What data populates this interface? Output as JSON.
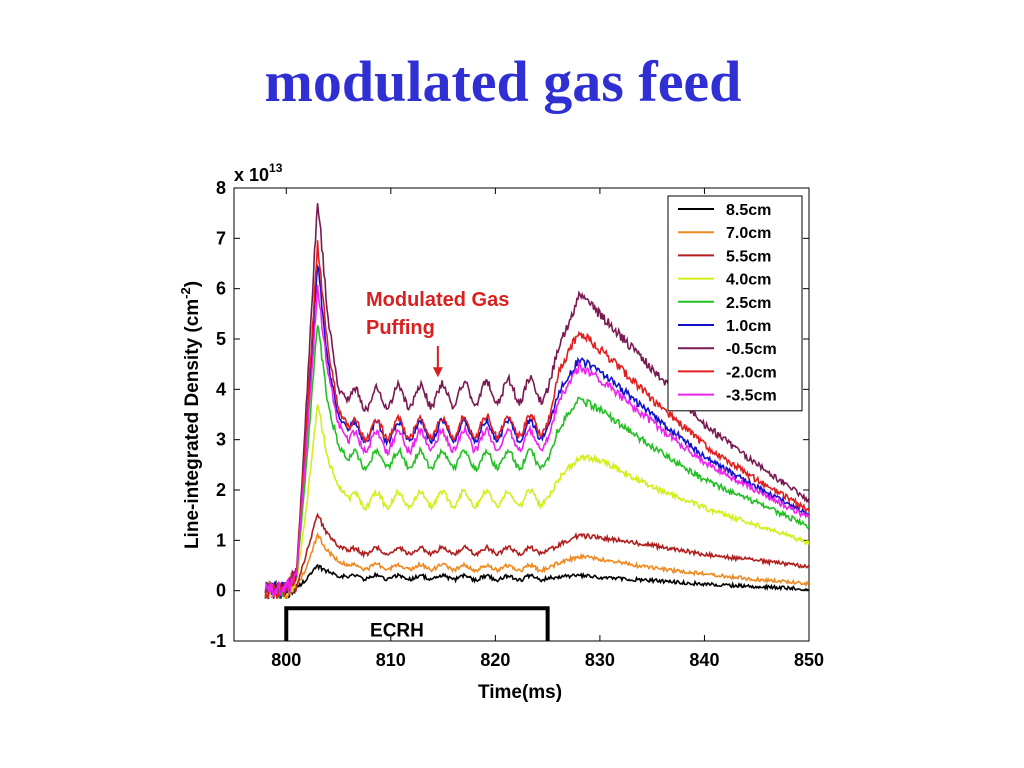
{
  "slide": {
    "title": "modulated gas feed"
  },
  "chart_data": {
    "type": "line",
    "xlabel": "Time(ms)",
    "ylabel": "Line-integrated Density (cm",
    "ylabel_sup": "-2",
    "ylabel_close": ")",
    "y_multiplier_base": "x 10",
    "y_multiplier_exp": "13",
    "xlim": [
      795,
      850
    ],
    "ylim": [
      -1,
      8
    ],
    "x_ticks": [
      800,
      810,
      820,
      830,
      840,
      850
    ],
    "y_ticks": [
      -1,
      0,
      1,
      2,
      3,
      4,
      5,
      6,
      7,
      8
    ],
    "legend_position": "top-right",
    "x_model": [
      798,
      800,
      801,
      802,
      803,
      804,
      805,
      806,
      825,
      826,
      828,
      830,
      835,
      840,
      845,
      850
    ],
    "series": [
      {
        "name": "8.5cm",
        "color": "#000000",
        "values": [
          0,
          0,
          0.05,
          0.25,
          0.48,
          0.38,
          0.3,
          0.27,
          0.25,
          0.28,
          0.3,
          0.26,
          0.2,
          0.13,
          0.08,
          0.03
        ],
        "mod_amp": 0.04
      },
      {
        "name": "7.0cm",
        "color": "#ee8a22",
        "values": [
          0,
          0,
          0.08,
          0.5,
          1.1,
          0.78,
          0.6,
          0.48,
          0.45,
          0.55,
          0.68,
          0.62,
          0.45,
          0.33,
          0.22,
          0.14
        ],
        "mod_amp": 0.05
      },
      {
        "name": "5.5cm",
        "color": "#b01e1e",
        "values": [
          0,
          0,
          0.1,
          0.8,
          1.5,
          1.1,
          0.9,
          0.78,
          0.8,
          0.9,
          1.1,
          1.05,
          0.9,
          0.72,
          0.6,
          0.47
        ],
        "mod_amp": 0.06
      },
      {
        "name": "4.0cm",
        "color": "#d4ee1c",
        "values": [
          0,
          0,
          0.2,
          1.8,
          3.7,
          2.6,
          2.1,
          1.8,
          1.85,
          2.2,
          2.65,
          2.6,
          2.05,
          1.65,
          1.3,
          0.95
        ],
        "mod_amp": 0.15
      },
      {
        "name": "2.5cm",
        "color": "#22c022",
        "values": [
          0,
          0,
          0.3,
          2.7,
          5.3,
          3.7,
          2.9,
          2.6,
          2.6,
          3.2,
          3.8,
          3.6,
          2.85,
          2.2,
          1.75,
          1.28
        ],
        "mod_amp": 0.17
      },
      {
        "name": "1.0cm",
        "color": "#1111cc",
        "values": [
          0,
          0,
          0.35,
          3.3,
          6.5,
          4.5,
          3.5,
          3.15,
          3.2,
          3.9,
          4.6,
          4.35,
          3.5,
          2.65,
          2.05,
          1.5
        ],
        "mod_amp": 0.2
      },
      {
        "name": "-0.5cm",
        "color": "#7a1a52",
        "values": [
          0,
          0,
          0.4,
          4.0,
          7.8,
          5.4,
          4.0,
          3.8,
          4.0,
          4.8,
          5.85,
          5.5,
          4.4,
          3.3,
          2.5,
          1.8
        ],
        "mod_amp": 0.22
      },
      {
        "name": "-2.0cm",
        "color": "#e02020",
        "values": [
          0,
          0,
          0.37,
          3.5,
          6.85,
          4.8,
          3.6,
          3.2,
          3.3,
          4.3,
          5.15,
          4.8,
          3.8,
          2.9,
          2.2,
          1.6
        ],
        "mod_amp": 0.2
      },
      {
        "name": "-3.5cm",
        "color": "#ee22ee",
        "values": [
          0,
          0,
          0.33,
          3.1,
          6.0,
          4.3,
          3.3,
          2.95,
          3.0,
          3.75,
          4.45,
          4.2,
          3.35,
          2.55,
          1.98,
          1.45
        ],
        "mod_amp": 0.19
      }
    ],
    "modulation": {
      "start": 806,
      "end": 825,
      "period": 2.1
    },
    "annotation": {
      "line1": "Modulated Gas",
      "line2": "Puffing",
      "x": 814.5,
      "y": 4.2,
      "color": "#d92020"
    },
    "ecrh": {
      "label": "ECRH",
      "start": 800,
      "end": 825,
      "y": -0.35
    }
  }
}
